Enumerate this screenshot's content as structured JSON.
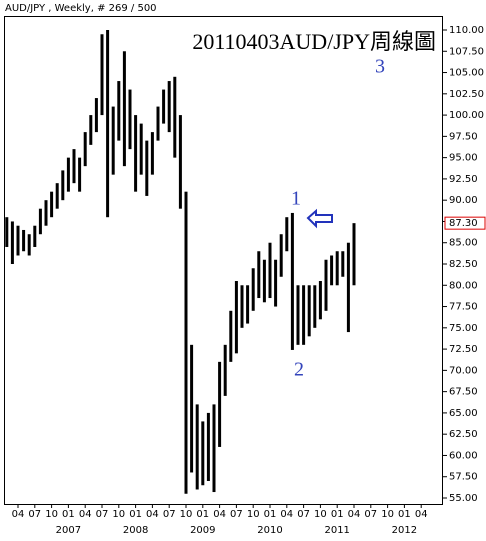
{
  "chart_data": {
    "type": "hilo",
    "header": "AUD/JPY , Weekly, # 269 / 500",
    "title": "20110403AUD/JPY周線圖",
    "annotations": [
      "1",
      "2",
      "3"
    ],
    "color": "#000000",
    "x": [
      "2006-02",
      "2006-03",
      "2006-04",
      "2006-05",
      "2006-06",
      "2006-07",
      "2006-08",
      "2006-09",
      "2006-10",
      "2006-11",
      "2006-12",
      "2007-01",
      "2007-02",
      "2007-03",
      "2007-04",
      "2007-05",
      "2007-06",
      "2007-07",
      "2007-08",
      "2007-09",
      "2007-10",
      "2007-11",
      "2007-12",
      "2008-01",
      "2008-02",
      "2008-03",
      "2008-04",
      "2008-05",
      "2008-06",
      "2008-07",
      "2008-08",
      "2008-09",
      "2008-10",
      "2008-11",
      "2008-12",
      "2009-01",
      "2009-02",
      "2009-03",
      "2009-04",
      "2009-05",
      "2009-06",
      "2009-07",
      "2009-08",
      "2009-09",
      "2009-10",
      "2009-11",
      "2009-12",
      "2010-01",
      "2010-02",
      "2010-03",
      "2010-04",
      "2010-05",
      "2010-06",
      "2010-07",
      "2010-08",
      "2010-09",
      "2010-10",
      "2010-11",
      "2010-12",
      "2011-01",
      "2011-02",
      "2011-03",
      "2011-04"
    ],
    "high": [
      88,
      87.5,
      87,
      86.5,
      86,
      87,
      89,
      90,
      91,
      92,
      93.5,
      95,
      96,
      95,
      98,
      100,
      102,
      109.5,
      110,
      101,
      104,
      107.5,
      103,
      100,
      99,
      97,
      98,
      101,
      103,
      104,
      104.5,
      100,
      91,
      73,
      66,
      64,
      65,
      66,
      71,
      73,
      77,
      80.5,
      80,
      80,
      82,
      84,
      83,
      85,
      83,
      86,
      88,
      88.5,
      80,
      80,
      80,
      80,
      80.5,
      83,
      83.5,
      84,
      84,
      85,
      87.3
    ],
    "low": [
      84.5,
      82.5,
      83.5,
      84,
      83.5,
      84.5,
      86,
      87,
      88,
      89,
      90,
      91,
      92,
      91,
      94,
      96.5,
      98,
      100,
      88,
      93,
      97,
      94,
      96,
      91,
      93,
      90.5,
      93,
      97,
      99,
      98,
      95,
      89,
      55.5,
      58,
      56,
      56.5,
      57,
      55.7,
      61,
      67,
      71,
      72,
      75,
      75.5,
      77,
      78.5,
      78,
      78.5,
      77.5,
      81,
      84,
      72.4,
      73,
      73,
      74,
      75,
      76,
      77,
      80,
      80,
      81,
      74.5,
      80
    ],
    "ylim": [
      55,
      110
    ],
    "yticks": [
      {
        "value": 55,
        "label": "55.00"
      },
      {
        "value": 57.5,
        "label": "57.50"
      },
      {
        "value": 60,
        "label": "60.00"
      },
      {
        "value": 62.5,
        "label": "62.50"
      },
      {
        "value": 65,
        "label": "65.00"
      },
      {
        "value": 67.5,
        "label": "67.50"
      },
      {
        "value": 70,
        "label": "70.00"
      },
      {
        "value": 72.5,
        "label": "72.50"
      },
      {
        "value": 75,
        "label": "75.00"
      },
      {
        "value": 77.5,
        "label": "77.50"
      },
      {
        "value": 80,
        "label": "80.00"
      },
      {
        "value": 82.5,
        "label": "82.50"
      },
      {
        "value": 85,
        "label": "85.00"
      },
      {
        "value": 87.5,
        "label": "87.50"
      },
      {
        "value": 90,
        "label": "90.00"
      },
      {
        "value": 92.5,
        "label": "92.50"
      },
      {
        "value": 95,
        "label": "95.00"
      },
      {
        "value": 97.5,
        "label": "97.50"
      },
      {
        "value": 100,
        "label": "100.00"
      },
      {
        "value": 102.5,
        "label": "102.50"
      },
      {
        "value": 105,
        "label": "105.00"
      },
      {
        "value": 107.5,
        "label": "107.50"
      },
      {
        "value": 110,
        "label": "110.00"
      }
    ],
    "last_price": {
      "value": 87.3,
      "label": "87.30"
    },
    "xticks": [
      {
        "value": "2006-04",
        "label": "04"
      },
      {
        "value": "2006-07",
        "label": "07"
      },
      {
        "value": "2006-10",
        "label": "10"
      },
      {
        "value": "2007-01",
        "label": "01"
      },
      {
        "value": "2007-04",
        "label": "04"
      },
      {
        "value": "2007-07",
        "label": "07"
      },
      {
        "value": "2007-10",
        "label": "10"
      },
      {
        "value": "2008-01",
        "label": "01"
      },
      {
        "value": "2008-04",
        "label": "04"
      },
      {
        "value": "2008-07",
        "label": "07"
      },
      {
        "value": "2008-10",
        "label": "10"
      },
      {
        "value": "2009-01",
        "label": "01"
      },
      {
        "value": "2009-04",
        "label": "04"
      },
      {
        "value": "2009-07",
        "label": "07"
      },
      {
        "value": "2009-10",
        "label": "10"
      },
      {
        "value": "2010-01",
        "label": "01"
      },
      {
        "value": "2010-04",
        "label": "04"
      },
      {
        "value": "2010-07",
        "label": "07"
      },
      {
        "value": "2010-10",
        "label": "10"
      },
      {
        "value": "2011-01",
        "label": "01"
      },
      {
        "value": "2011-04",
        "label": "04"
      },
      {
        "value": "2011-07",
        "label": "07"
      },
      {
        "value": "2011-10",
        "label": "10"
      },
      {
        "value": "2012-01",
        "label": "01"
      },
      {
        "value": "2012-04",
        "label": "04"
      }
    ],
    "year_labels": [
      {
        "value": "2007-01",
        "label": "2007"
      },
      {
        "value": "2008-01",
        "label": "2008"
      },
      {
        "value": "2009-01",
        "label": "2009"
      },
      {
        "value": "2010-01",
        "label": "2010"
      },
      {
        "value": "2011-01",
        "label": "2011"
      },
      {
        "value": "2012-01",
        "label": "2012"
      }
    ]
  }
}
